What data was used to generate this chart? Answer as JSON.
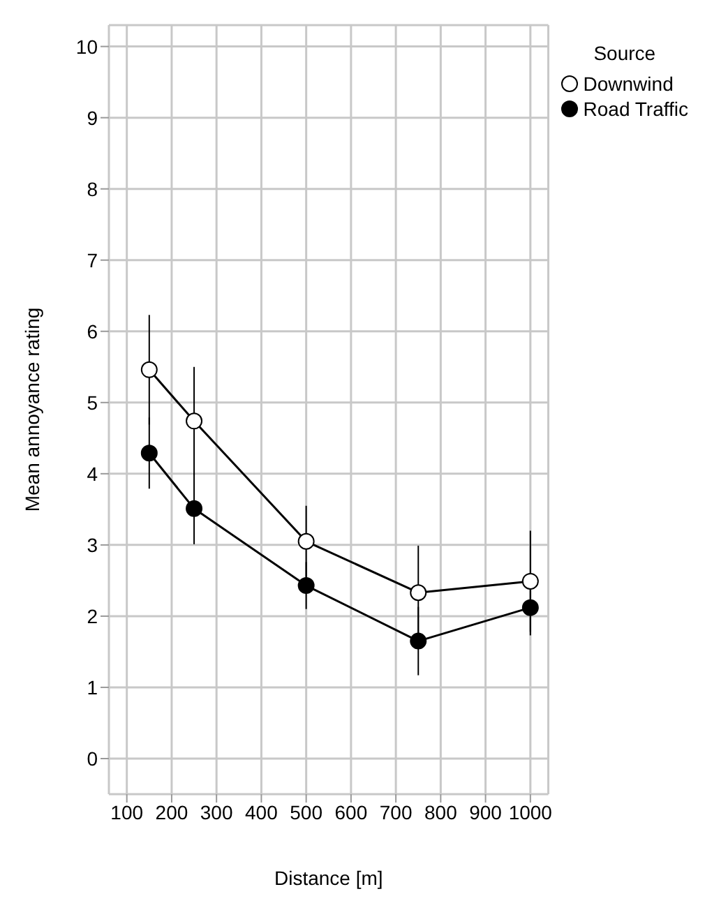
{
  "chart_data": {
    "type": "line",
    "xlabel": "Distance [m]",
    "ylabel": "Mean annoyance rating",
    "legend_title": "Source",
    "x": [
      150,
      250,
      500,
      750,
      1000
    ],
    "series": [
      {
        "name": "Downwind",
        "color": "#ffffff",
        "values": [
          5.46,
          4.74,
          3.05,
          2.33,
          2.49
        ],
        "errors": [
          0.77,
          0.76,
          0.5,
          0.66,
          0.71
        ]
      },
      {
        "name": "Road Traffic",
        "color": "#000000",
        "values": [
          4.29,
          3.51,
          2.43,
          1.65,
          2.12
        ],
        "errors": [
          0.5,
          0.5,
          0.33,
          0.48,
          0.39
        ]
      }
    ],
    "xlim": [
      60,
      1040
    ],
    "xticks": [
      100,
      200,
      300,
      400,
      500,
      600,
      700,
      800,
      900,
      1000
    ],
    "ylim": [
      -0.5,
      10.3
    ],
    "yticks": [
      0,
      1,
      2,
      3,
      4,
      5,
      6,
      7,
      8,
      9,
      10
    ],
    "grid": true,
    "legend": "top right",
    "marker": "circle",
    "line_style": "solid"
  }
}
